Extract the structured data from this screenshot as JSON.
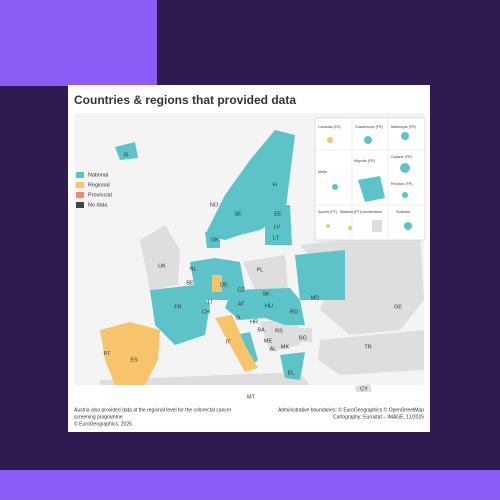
{
  "title": "Countries & regions that provided data",
  "legend": [
    {
      "label": "National",
      "color": "#5cc4c9"
    },
    {
      "label": "Regional",
      "color": "#f7c46c"
    },
    {
      "label": "Provincial",
      "color": "#f08a6e"
    },
    {
      "label": "No data",
      "color": "#444444"
    }
  ],
  "country_labels": [
    "IS",
    "NO",
    "SE",
    "FI",
    "EE",
    "LV",
    "LT",
    "DK",
    "UK",
    "NL",
    "BE",
    "DE",
    "PL",
    "CZ",
    "SK",
    "FR",
    "CH",
    "LI",
    "AT",
    "SI",
    "HR",
    "HU",
    "RO",
    "IT",
    "BA",
    "RS",
    "ME",
    "AL",
    "MK",
    "BG",
    "PT",
    "ES",
    "MT",
    "EL",
    "TR",
    "CY",
    "MD",
    "GE"
  ],
  "inset_labels": [
    "Canarias (ES)",
    "Guadeloupe (FR)",
    "Martinique (FR)",
    "Guyane (FR)",
    "Réunion (FR)",
    "Malta",
    "Mayotte (FR)",
    "Açores (PT)",
    "Madeira (PT)",
    "Liechtenstein",
    "Svalbard"
  ],
  "footer": {
    "left": [
      "Austria also provided data at the regional level for the colorectal cancer",
      "screening programme",
      "© EuroGeographics, 2026"
    ],
    "right": [
      "Administrative boundaries: © EuroGeographics © OpenStreetMap",
      "Cartography: Eurostat – IMAGE, 11/2025"
    ]
  }
}
